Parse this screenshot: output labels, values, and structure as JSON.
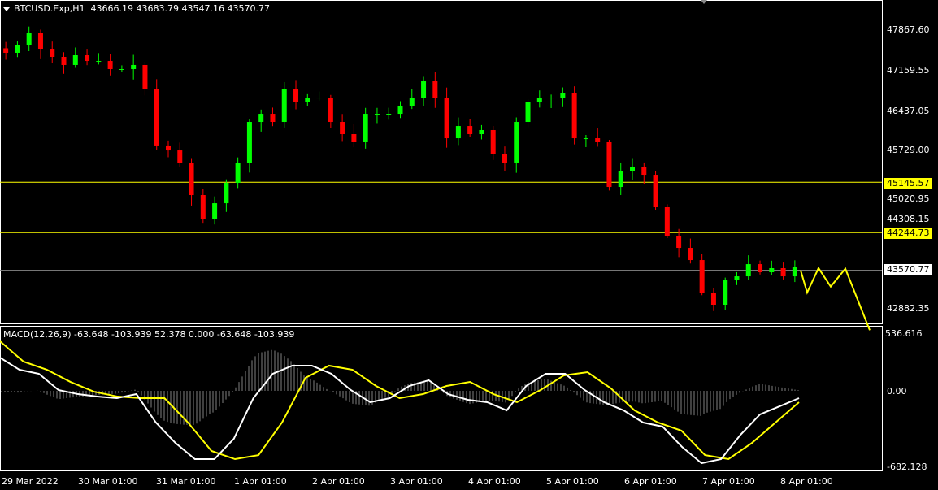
{
  "header": {
    "symbol": "BTCUSD.Exp,H1",
    "ohlc": "43666.19 43683.79 43547.16 43570.77"
  },
  "colors": {
    "bull": "#00ff00",
    "bear": "#ff0000",
    "level": "#ffff00",
    "macd": "#ffffff",
    "signal": "#ffff00",
    "hist": "#808080",
    "grid": "#ffffff",
    "arrow": "#ffff00"
  },
  "price_axis": {
    "ticks": [
      "47867.60",
      "47159.55",
      "46437.05",
      "45729.00",
      "45020.95",
      "44308.15",
      "42882.35"
    ],
    "range": [
      42882.35,
      47867.6
    ]
  },
  "levels": [
    {
      "price": 45145.57,
      "label": "45145.57",
      "color": "#ffff00"
    },
    {
      "price": 44244.73,
      "label": "44244.73",
      "color": "#ffff00"
    },
    {
      "price": 43570.77,
      "label": "43570.77",
      "color": "#ffffff",
      "current": true
    }
  ],
  "macd": {
    "label": "MACD(12,26,9) -63.648 -103.939 52.378 0.000 -63.648 -103.939",
    "ticks": [
      "536.616",
      "0.00",
      "-682.128"
    ],
    "range": [
      -682.128,
      536.616
    ],
    "main": [
      314,
      199,
      161,
      8,
      -31,
      -54,
      -69,
      -31,
      -299,
      -491,
      -644,
      -644,
      -452,
      -69,
      161,
      238,
      238,
      161,
      8,
      -107,
      -69,
      46,
      100,
      -31,
      -84,
      -107,
      -184,
      46,
      161,
      161,
      8,
      -107,
      -184,
      -299,
      -337,
      -529,
      -683,
      -644,
      -414,
      -222,
      -146,
      -69
    ],
    "signal": [
      468,
      276,
      199,
      84,
      -8,
      -54,
      -69,
      -69,
      -299,
      -567,
      -644,
      -606,
      -299,
      123,
      238,
      199,
      46,
      -69,
      -31,
      46,
      84,
      -31,
      -107,
      8,
      146,
      176,
      23,
      -184,
      -299,
      -376,
      -606,
      -644,
      -491,
      -299,
      -107
    ]
  },
  "chart_data": {
    "type": "candlestick",
    "closes": [
      47461,
      47606,
      47824,
      47533,
      47388,
      47243,
      47417,
      47315,
      47315,
      47170,
      47170,
      47243,
      46807,
      45790,
      45716,
      45498,
      44917,
      44481,
      44771,
      45135,
      45498,
      46225,
      46370,
      46225,
      46807,
      46588,
      46661,
      46661,
      46225,
      46007,
      45862,
      46370,
      46370,
      46370,
      46516,
      46661,
      46952,
      46661,
      45934,
      46152,
      46007,
      46080,
      45644,
      45498,
      46225,
      46588,
      46661,
      46661,
      46734,
      45934,
      45934,
      45862,
      45062,
      45353,
      45425,
      45280,
      44699,
      44190,
      43972,
      43754,
      43173,
      42955,
      43391,
      43463,
      43681,
      43536,
      43609,
      43463,
      43638
    ],
    "forecast_arrow": [
      43570.77,
      43173,
      43610,
      43280,
      43600,
      42500
    ]
  },
  "time_axis": [
    "29 Mar 2022",
    "30 Mar 01:00",
    "31 Mar 01:00",
    "1 Apr 01:00",
    "2 Apr 01:00",
    "3 Apr 01:00",
    "4 Apr 01:00",
    "5 Apr 01:00",
    "6 Apr 01:00",
    "7 Apr 01:00",
    "8 Apr 01:00"
  ]
}
